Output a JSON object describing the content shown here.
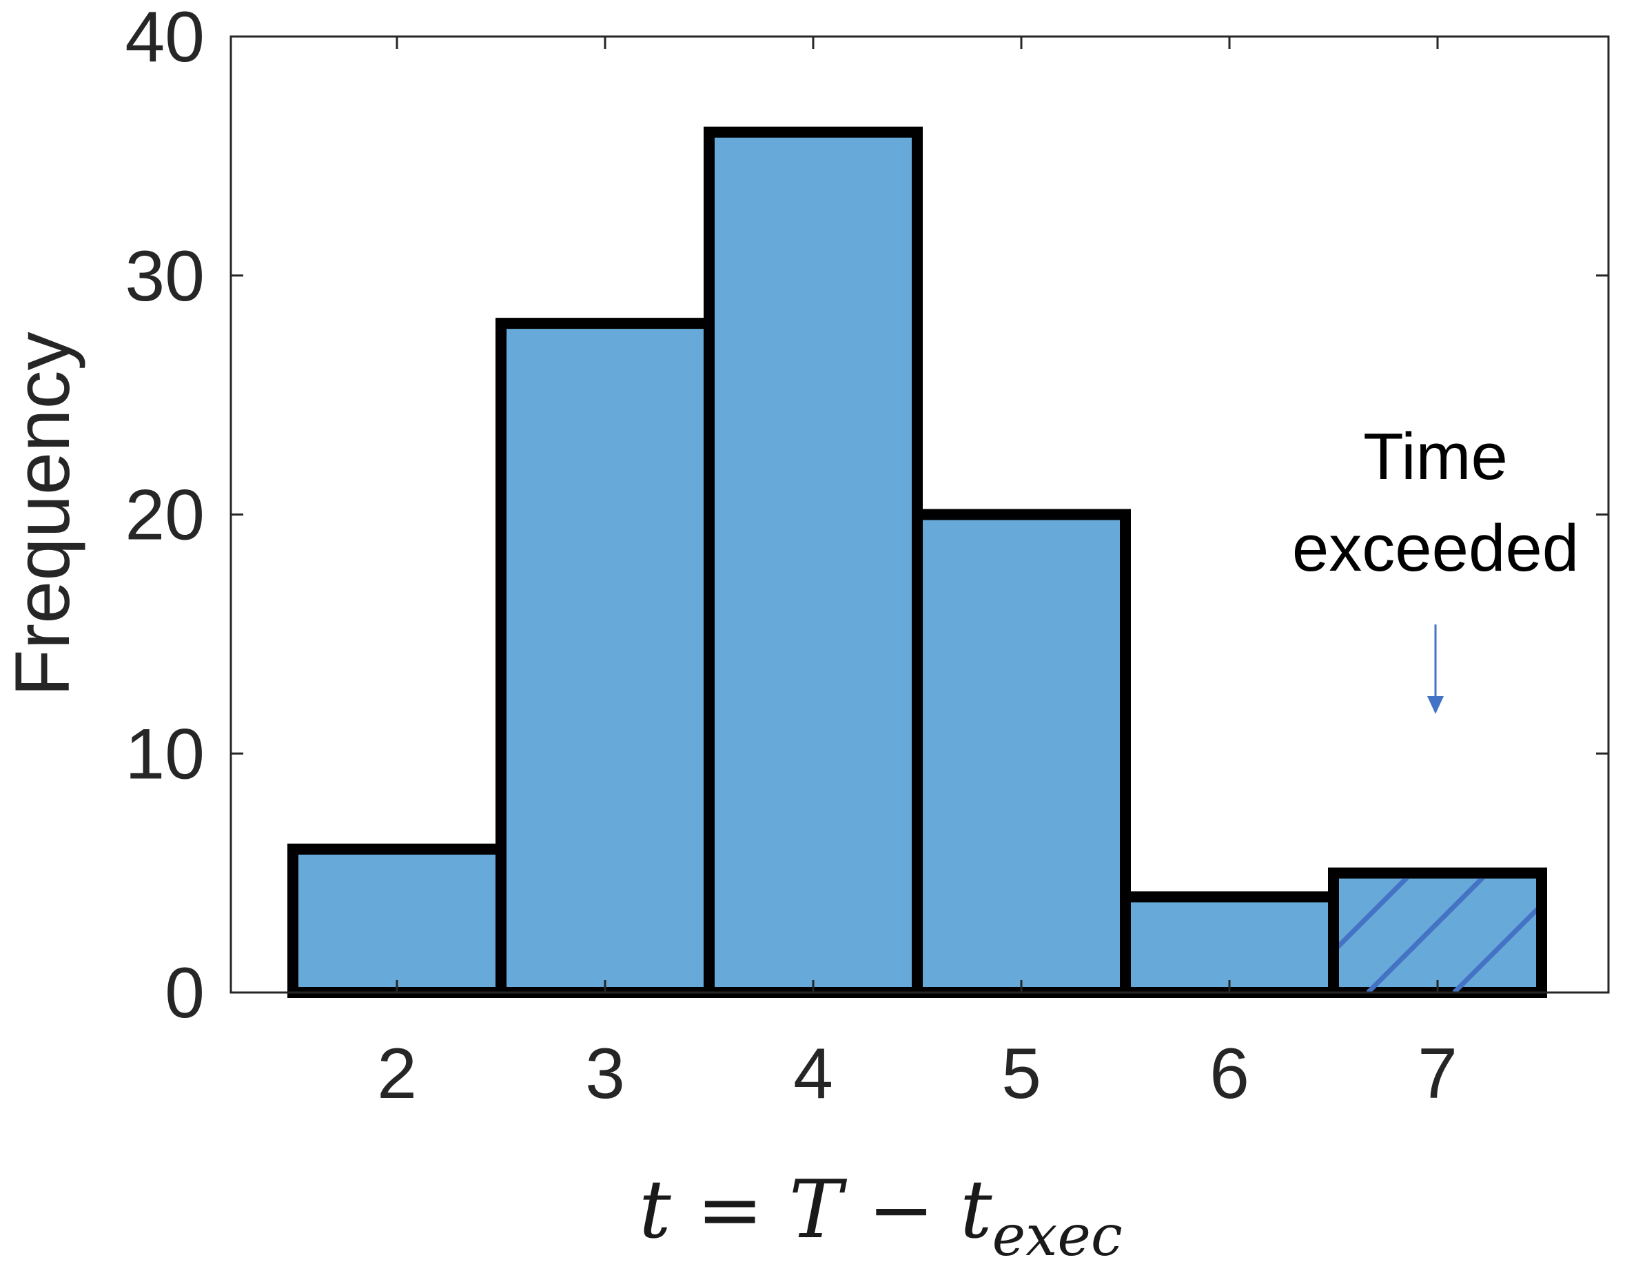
{
  "chart_data": {
    "type": "bar",
    "categories": [
      "2",
      "3",
      "4",
      "5",
      "6",
      "7"
    ],
    "values": [
      6,
      28,
      36,
      20,
      4,
      5
    ],
    "xlabel": {
      "base": "t = T − t",
      "subscript": "exec"
    },
    "ylabel": "Frequency",
    "ylim": [
      0,
      40
    ],
    "yticks": [
      "0",
      "10",
      "20",
      "30",
      "40"
    ],
    "grid": false,
    "hatched_category": "7",
    "annotation": {
      "line1": "Time",
      "line2": "exceeded",
      "points_to": "7"
    },
    "colors": {
      "bar_fill": "#67a9d8",
      "bar_edge": "#000000",
      "hatch": "#4472c4",
      "arrow": "#4472c4",
      "axis": "#262626"
    }
  }
}
